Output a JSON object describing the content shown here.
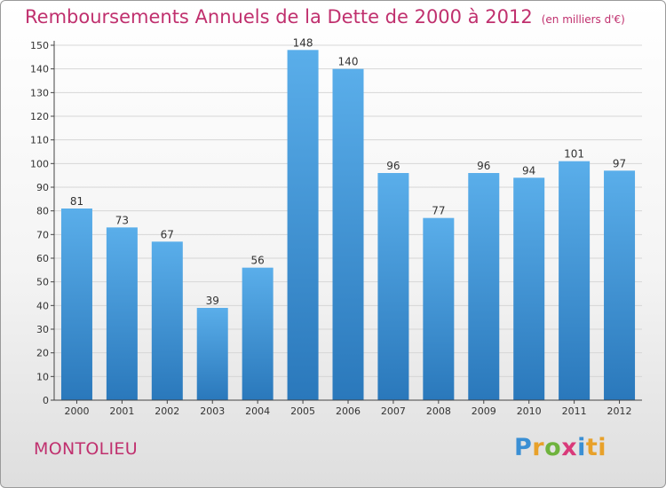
{
  "title": "Remboursements Annuels de la Dette de 2000 à 2012",
  "unit": "(en milliers d'€)",
  "town": "MONTOLIEU",
  "logo": {
    "p1": "P",
    "p2": "r",
    "p3": "o",
    "p4": "x",
    "p5": "i",
    "p6": "ti"
  },
  "colors": {
    "title": "#c0306e",
    "bar_light": "#5aaeea",
    "bar_dark": "#2a78bb"
  },
  "chart_data": {
    "type": "bar",
    "title": "Remboursements Annuels de la Dette de 2000 à 2012",
    "categories": [
      "2000",
      "2001",
      "2002",
      "2003",
      "2004",
      "2005",
      "2006",
      "2007",
      "2008",
      "2009",
      "2010",
      "2011",
      "2012"
    ],
    "values": [
      81,
      73,
      67,
      39,
      56,
      148,
      140,
      96,
      77,
      96,
      94,
      101,
      97
    ],
    "ylim": [
      0,
      150
    ],
    "yticks": [
      0,
      10,
      20,
      30,
      40,
      50,
      60,
      70,
      80,
      90,
      100,
      110,
      120,
      130,
      140,
      150
    ],
    "grid": true
  }
}
